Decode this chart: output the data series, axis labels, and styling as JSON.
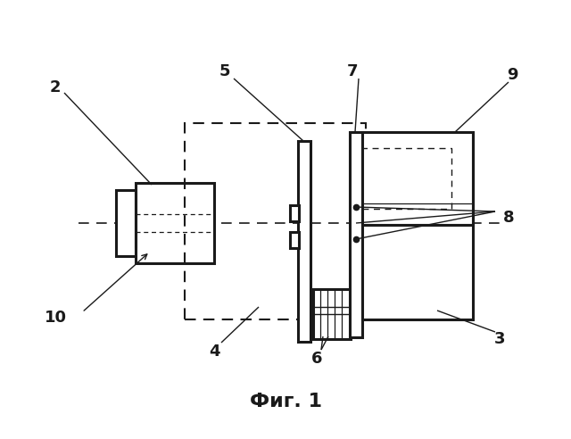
{
  "title": "Фиг. 1",
  "title_fontsize": 16,
  "background_color": "#ffffff",
  "line_color": "#1a1a1a",
  "lw": 2.2,
  "lw_thin": 1.2
}
